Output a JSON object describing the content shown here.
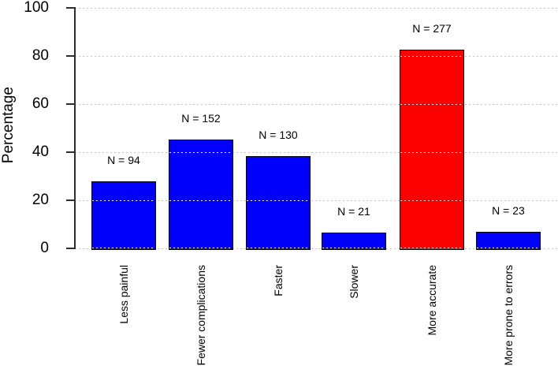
{
  "chart_data": {
    "type": "bar",
    "title": "",
    "ylabel": "Percentage",
    "xlabel": "",
    "ylim": [
      0,
      100
    ],
    "yticks": [
      0,
      20,
      40,
      60,
      80,
      100
    ],
    "ytick_labels": [
      "0",
      "20",
      "40",
      "60",
      "80",
      "100"
    ],
    "grid": "horizontal dotted gridlines at each y tick, white dashes where they cross bars",
    "legend": "none",
    "categories": [
      "Less painful",
      "Fewer complications",
      "Faster",
      "Slower",
      "More accurate",
      "More prone to errors"
    ],
    "values": [
      27.9,
      45.1,
      38.4,
      6.4,
      82.7,
      7.0
    ],
    "counts": [
      94,
      152,
      130,
      21,
      277,
      23
    ],
    "bar_labels": [
      "N = 94",
      "N = 152",
      "N = 130",
      "N = 21",
      "N = 277",
      "N = 23"
    ],
    "bar_colors": [
      "#0000FC",
      "#0000FC",
      "#0000FC",
      "#0000FC",
      "#FC0000",
      "#0000FC"
    ],
    "colors": {
      "blue_bar": "#0000FC",
      "red_bar": "#FC0000",
      "bar_border": "#000000",
      "gridline": "#C6C6C6",
      "grid_on_bar": "#FFFFFF",
      "axis": "#2E2E2E",
      "text": "#000000",
      "background": "#FFFFFF"
    }
  }
}
